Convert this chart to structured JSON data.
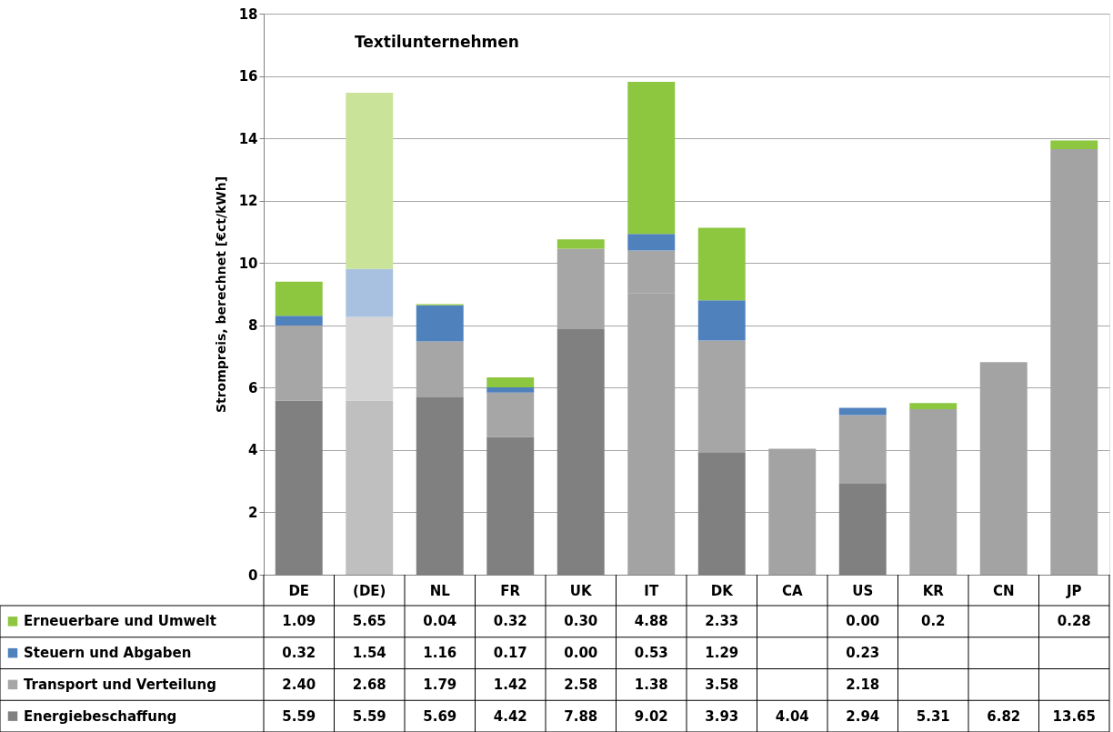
{
  "chart_data": {
    "type": "bar",
    "stacked": true,
    "title": "Textilunternehmen",
    "ylabel": "Strompreis, berechnet [€ct/kWh]",
    "categories": [
      "DE",
      "(DE)",
      "NL",
      "FR",
      "UK",
      "IT",
      "DK",
      "CA",
      "US",
      "KR",
      "CN",
      "JP"
    ],
    "series": [
      {
        "name": "Energiebeschaffung",
        "color": "#808080",
        "values": [
          5.59,
          5.59,
          5.69,
          4.42,
          7.88,
          9.02,
          3.93,
          4.04,
          2.94,
          5.31,
          6.82,
          13.65
        ],
        "value_labels": [
          "5.59",
          "5.59",
          "5.69",
          "4.42",
          "7.88",
          "9.02",
          "3.93",
          "4.04",
          "2.94",
          "5.31",
          "6.82",
          "13.65"
        ],
        "colors": [
          "#808080",
          "#bfbfbf",
          "#808080",
          "#808080",
          "#808080",
          "#a3a3a3",
          "#808080",
          "#a3a3a3",
          "#808080",
          "#a3a3a3",
          "#a3a3a3",
          "#a3a3a3"
        ]
      },
      {
        "name": "Transport und Verteilung",
        "color": "#a6a6a6",
        "values": [
          2.4,
          2.68,
          1.79,
          1.42,
          2.58,
          1.38,
          3.58,
          null,
          2.18,
          null,
          null,
          null
        ],
        "value_labels": [
          "2.40",
          "2.68",
          "1.79",
          "1.42",
          "2.58",
          "1.38",
          "3.58",
          null,
          "2.18",
          null,
          null,
          null
        ],
        "colors": [
          "#a6a6a6",
          "#d4d4d4",
          "#a6a6a6",
          "#a6a6a6",
          "#a6a6a6",
          "#a6a6a6",
          "#a6a6a6",
          null,
          "#a6a6a6",
          null,
          null,
          null
        ]
      },
      {
        "name": "Steuern und Abgaben",
        "color": "#4f81bd",
        "values": [
          0.32,
          1.54,
          1.16,
          0.17,
          0.0,
          0.53,
          1.29,
          null,
          0.23,
          null,
          null,
          null
        ],
        "value_labels": [
          "0.32",
          "1.54",
          "1.16",
          "0.17",
          "0.00",
          "0.53",
          "1.29",
          null,
          "0.23",
          null,
          null,
          null
        ],
        "colors": [
          "#4f81bd",
          "#a8c1e0",
          "#4f81bd",
          "#4f81bd",
          "#4f81bd",
          "#4f81bd",
          "#4f81bd",
          null,
          "#4f81bd",
          null,
          null,
          null
        ]
      },
      {
        "name": "Erneuerbare und Umwelt",
        "color": "#8dc63f",
        "values": [
          1.09,
          5.65,
          0.04,
          0.32,
          0.3,
          4.88,
          2.33,
          null,
          0.0,
          0.2,
          null,
          0.28
        ],
        "value_labels": [
          "1.09",
          "5.65",
          "0.04",
          "0.32",
          "0.30",
          "4.88",
          "2.33",
          null,
          "0.00",
          "0.2",
          null,
          "0.28"
        ],
        "colors": [
          "#8dc63f",
          "#c9e399",
          "#8dc63f",
          "#8dc63f",
          "#8dc63f",
          "#8dc63f",
          "#8dc63f",
          null,
          "#8dc63f",
          "#8dc63f",
          null,
          "#8dc63f"
        ]
      }
    ],
    "ylim": [
      0,
      18
    ],
    "yticks": [
      0,
      2,
      4,
      6,
      8,
      10,
      12,
      14,
      16,
      18
    ],
    "grid": "y",
    "legend": "bottom left"
  }
}
